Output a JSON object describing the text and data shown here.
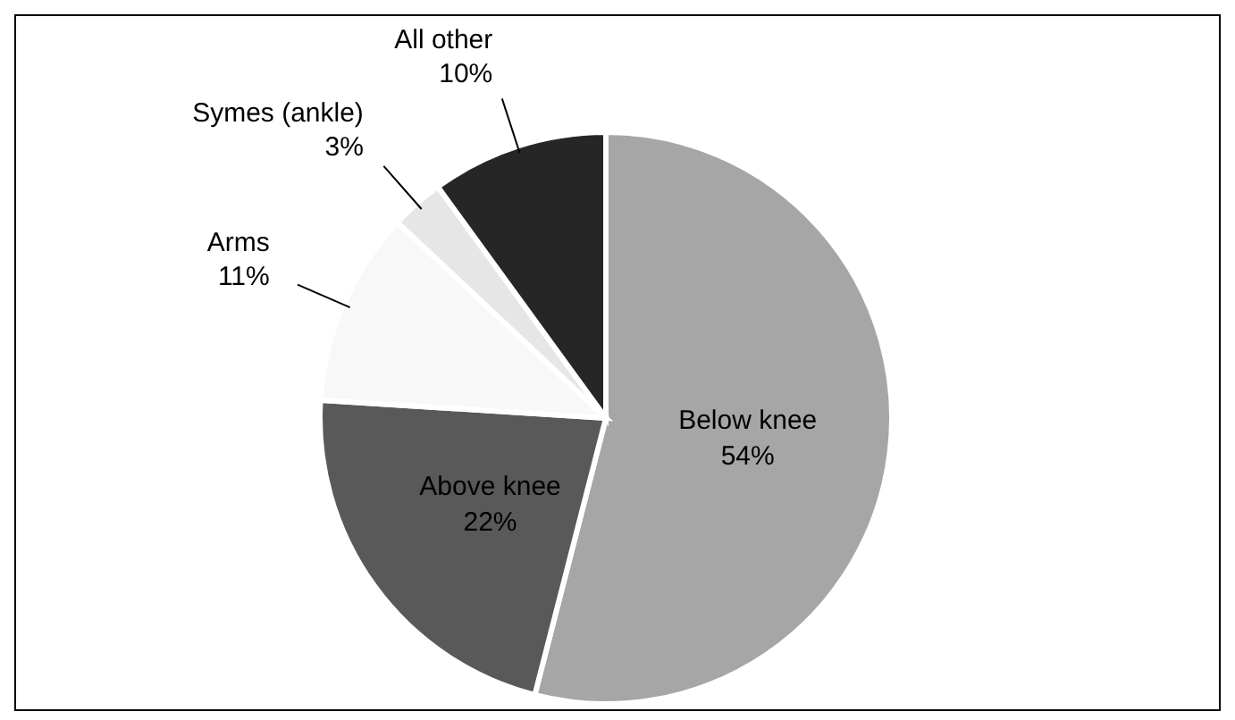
{
  "chart_data": {
    "type": "pie",
    "categories": [
      "Below knee",
      "Above knee",
      "Arms",
      "Symes (ankle)",
      "All other"
    ],
    "values": [
      54,
      22,
      11,
      3,
      10
    ],
    "value_labels": [
      "54%",
      "22%",
      "11%",
      "3%",
      "10%"
    ],
    "colors": [
      "#a6a6a6",
      "#595959",
      "#f8f8f8",
      "#e6e6e6",
      "#262626"
    ],
    "legend": false
  }
}
